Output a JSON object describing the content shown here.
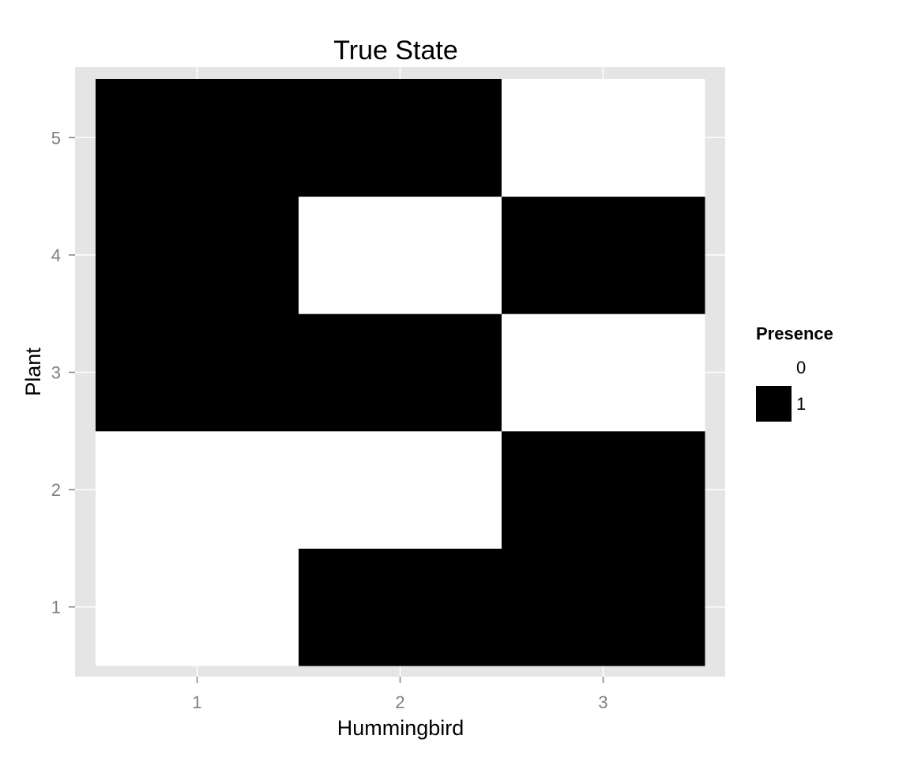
{
  "chart_data": {
    "type": "heatmap",
    "title": "True State",
    "xlabel": "Hummingbird",
    "ylabel": "Plant",
    "x_categories": [
      "1",
      "2",
      "3"
    ],
    "y_categories": [
      "1",
      "2",
      "3",
      "4",
      "5"
    ],
    "cells": [
      {
        "x": "1",
        "y": "1",
        "value": 0
      },
      {
        "x": "2",
        "y": "1",
        "value": 1
      },
      {
        "x": "3",
        "y": "1",
        "value": 1
      },
      {
        "x": "1",
        "y": "2",
        "value": 0
      },
      {
        "x": "2",
        "y": "2",
        "value": 0
      },
      {
        "x": "3",
        "y": "2",
        "value": 1
      },
      {
        "x": "1",
        "y": "3",
        "value": 1
      },
      {
        "x": "2",
        "y": "3",
        "value": 1
      },
      {
        "x": "3",
        "y": "3",
        "value": 0
      },
      {
        "x": "1",
        "y": "4",
        "value": 1
      },
      {
        "x": "2",
        "y": "4",
        "value": 0
      },
      {
        "x": "3",
        "y": "4",
        "value": 1
      },
      {
        "x": "1",
        "y": "5",
        "value": 1
      },
      {
        "x": "2",
        "y": "5",
        "value": 1
      },
      {
        "x": "3",
        "y": "5",
        "value": 0
      }
    ],
    "legend": {
      "title": "Presence",
      "position": "right",
      "entries": [
        {
          "label": "0",
          "color": "#ffffff"
        },
        {
          "label": "1",
          "color": "#000000"
        }
      ]
    },
    "colors": {
      "panel_background": "#e5e5e5",
      "grid": "#ffffff",
      "tick_text": "#7f7f7f"
    },
    "grid": true
  }
}
